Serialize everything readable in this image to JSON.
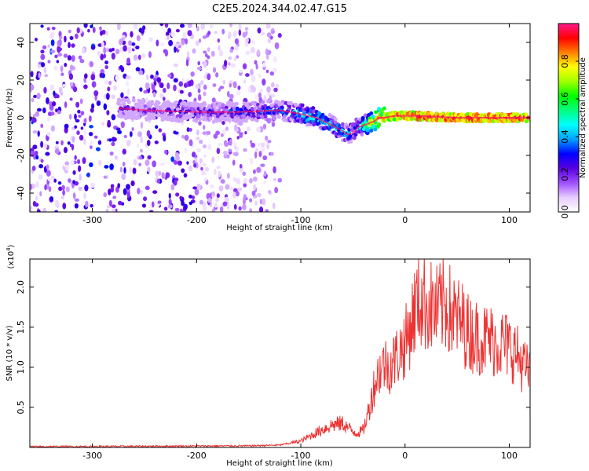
{
  "title": "C2E5.2024.344.02.47.G15",
  "chart_data": [
    {
      "type": "heatmap",
      "xlabel": "Height of straight line (km)",
      "ylabel": "Frequency (Hz)",
      "xlim": [
        -360,
        120
      ],
      "ylim": [
        -50,
        50
      ],
      "xticks": [
        -300,
        -200,
        -100,
        0,
        100
      ],
      "yticks": [
        -40,
        -20,
        0,
        20,
        40
      ],
      "colorbar": {
        "label": "Normalized spectral amplitude",
        "range": [
          0,
          1
        ],
        "ticks": [
          0.0,
          0.2,
          0.4,
          0.6,
          0.8
        ],
        "tick_labels": [
          "0.0",
          "0.2",
          "0.4",
          "0.6",
          "0.8"
        ],
        "colormap": [
          "#ffffff",
          "#e6ccff",
          "#a050ff",
          "#5a00e0",
          "#0000ff",
          "#00a0ff",
          "#00ffff",
          "#00ff80",
          "#00ff00",
          "#a0ff00",
          "#ffff00",
          "#ff8000",
          "#ff0000",
          "#ff1a8c"
        ]
      },
      "trace": {
        "description": "frequency centre line of strong signal",
        "x": [
          -275,
          -250,
          -200,
          -160,
          -120,
          -100,
          -85,
          -70,
          -60,
          -55,
          -50,
          -45,
          -40,
          -35,
          -30,
          -25,
          -20,
          -10,
          0,
          10,
          50,
          100,
          118
        ],
        "y": [
          5,
          4,
          3,
          3,
          4,
          2,
          0,
          -4,
          -7,
          -9,
          -8,
          -5,
          -4,
          -3,
          -2,
          0,
          0,
          1,
          1,
          1,
          0,
          0,
          0
        ],
        "amplitude": [
          0.3,
          0.3,
          0.35,
          0.4,
          0.45,
          0.55,
          0.6,
          0.55,
          0.5,
          0.5,
          0.5,
          0.5,
          0.6,
          0.75,
          0.85,
          0.9,
          0.9,
          0.95,
          0.95,
          1.0,
          1.0,
          1.0,
          1.0
        ]
      },
      "noise_region_x": [
        -360,
        -120
      ]
    },
    {
      "type": "line",
      "xlabel": "Height of straight line (km)",
      "ylabel": "SNR (10 * v/v)",
      "y_multiplier": "(x10",
      "y_multiplier_exp": "4",
      "y_multiplier_close": ")",
      "xlim": [
        -360,
        120
      ],
      "ylim": [
        0,
        2.35
      ],
      "xticks": [
        -300,
        -200,
        -100,
        0,
        100
      ],
      "yticks": [
        0.5,
        1.0,
        1.5,
        2.0
      ],
      "ytick_labels": [
        "0.5",
        "1.0",
        "1.5",
        "2.0"
      ],
      "color": "#ee3333",
      "series": [
        {
          "x": [
            -360,
            -150,
            -120,
            -100,
            -90,
            -80,
            -70,
            -60,
            -50,
            -45,
            -40,
            -35,
            -30,
            -25,
            -20,
            -15,
            -10,
            -5,
            0,
            5,
            10,
            15,
            20,
            25,
            30,
            35,
            40,
            45,
            50,
            55,
            60,
            65,
            70,
            75,
            80,
            85,
            90,
            95,
            100,
            105,
            110,
            115,
            118
          ],
          "y": [
            0.01,
            0.02,
            0.03,
            0.08,
            0.15,
            0.22,
            0.28,
            0.3,
            0.2,
            0.18,
            0.22,
            0.45,
            0.75,
            0.95,
            1.05,
            1.0,
            1.1,
            1.2,
            1.3,
            1.5,
            1.75,
            1.85,
            1.8,
            1.75,
            1.7,
            1.75,
            1.8,
            1.65,
            1.6,
            1.55,
            1.45,
            1.4,
            1.38,
            1.35,
            1.35,
            1.33,
            1.3,
            1.3,
            1.25,
            1.2,
            1.1,
            1.0,
            0.95
          ]
        }
      ]
    }
  ]
}
